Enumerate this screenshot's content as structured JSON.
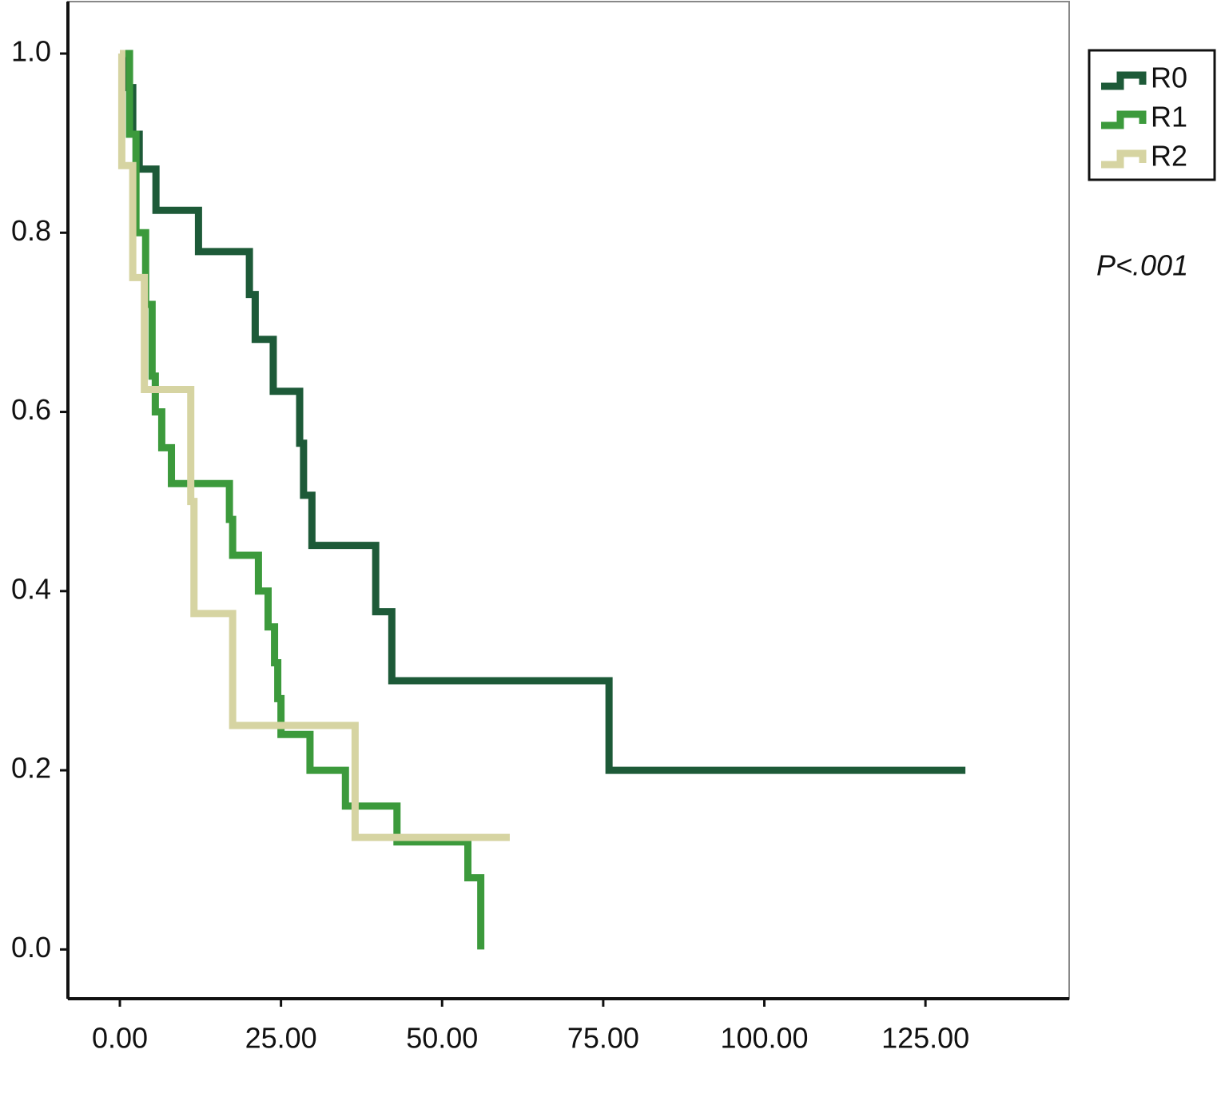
{
  "chart_data": {
    "type": "step",
    "xlim": [
      -8.06,
      147.3
    ],
    "ylim": [
      -0.055,
      1.058
    ],
    "xticks": [
      {
        "value": 0,
        "label": "0.00"
      },
      {
        "value": 25,
        "label": "25.00"
      },
      {
        "value": 50,
        "label": "50.00"
      },
      {
        "value": 75,
        "label": "75.00"
      },
      {
        "value": 100,
        "label": "100.00"
      },
      {
        "value": 125,
        "label": "125.00"
      }
    ],
    "yticks": [
      {
        "value": 0,
        "label": "0.0"
      },
      0.2,
      0.4,
      0.6,
      0.8,
      {
        "value": 1,
        "label": "1.0"
      }
    ],
    "grid": false,
    "legend": "right",
    "annotation": "P<.001",
    "series": [
      {
        "name": "R0",
        "color": "#1d5a38",
        "x": [
          0,
          1,
          2,
          3,
          5.6,
          12.2,
          20.1,
          21,
          23.8,
          27.9,
          28.5,
          29.8,
          39.7,
          42.2,
          75.9,
          131.2
        ],
        "values": [
          1.0,
          0.962,
          0.91,
          0.871,
          0.825,
          0.779,
          0.731,
          0.681,
          0.623,
          0.565,
          0.507,
          0.451,
          0.377,
          0.3,
          0.2,
          0.2
        ]
      },
      {
        "name": "R1",
        "color": "#3c9a3c",
        "x": [
          0,
          1.5,
          2.5,
          4,
          5,
          5.5,
          6.5,
          8,
          17,
          17.5,
          21.5,
          23,
          24,
          24.5,
          25,
          29.5,
          35,
          43,
          54,
          56
        ],
        "values": [
          1.0,
          0.91,
          0.8,
          0.72,
          0.64,
          0.6,
          0.56,
          0.52,
          0.48,
          0.44,
          0.4,
          0.36,
          0.32,
          0.28,
          0.24,
          0.2,
          0.16,
          0.12,
          0.08,
          0.0
        ]
      },
      {
        "name": "R2",
        "color": "#d6d4a2",
        "x": [
          0,
          0.3,
          2,
          3.8,
          11,
          11.5,
          17.5,
          36.5,
          60.5
        ],
        "values": [
          1.0,
          0.875,
          0.75,
          0.625,
          0.5,
          0.375,
          0.25,
          0.125,
          0.125
        ]
      }
    ]
  }
}
